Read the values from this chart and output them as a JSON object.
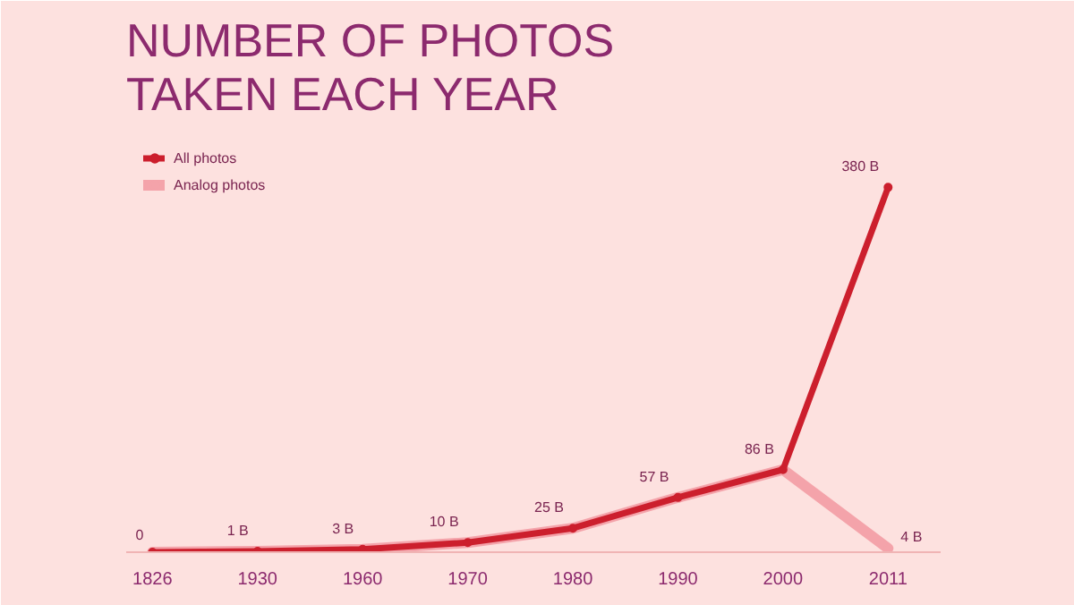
{
  "chart_data": {
    "type": "line",
    "title": "NUMBER OF PHOTOS\nTAKEN EACH YEAR",
    "categories": [
      "1826",
      "1930",
      "1960",
      "1970",
      "1980",
      "1990",
      "2000",
      "2011"
    ],
    "series": [
      {
        "name": "Analog photos",
        "color": "#f4a3aa",
        "values": [
          0,
          1,
          3,
          10,
          25,
          57,
          86,
          4
        ],
        "value_labels": [
          null,
          null,
          null,
          null,
          null,
          null,
          null,
          "4 B"
        ]
      },
      {
        "name": "All photos",
        "color": "#cc1f2d",
        "values": [
          0,
          1,
          3,
          10,
          25,
          57,
          86,
          380
        ],
        "value_labels": [
          "0",
          "1 B",
          "3 B",
          "10 B",
          "25 B",
          "57 B",
          "86 B",
          "380 B"
        ]
      }
    ],
    "ylim": [
      0,
      440
    ],
    "tick_labels": "x",
    "grid": false,
    "legend": "top left",
    "marker": "circle",
    "line_style": "solid"
  }
}
